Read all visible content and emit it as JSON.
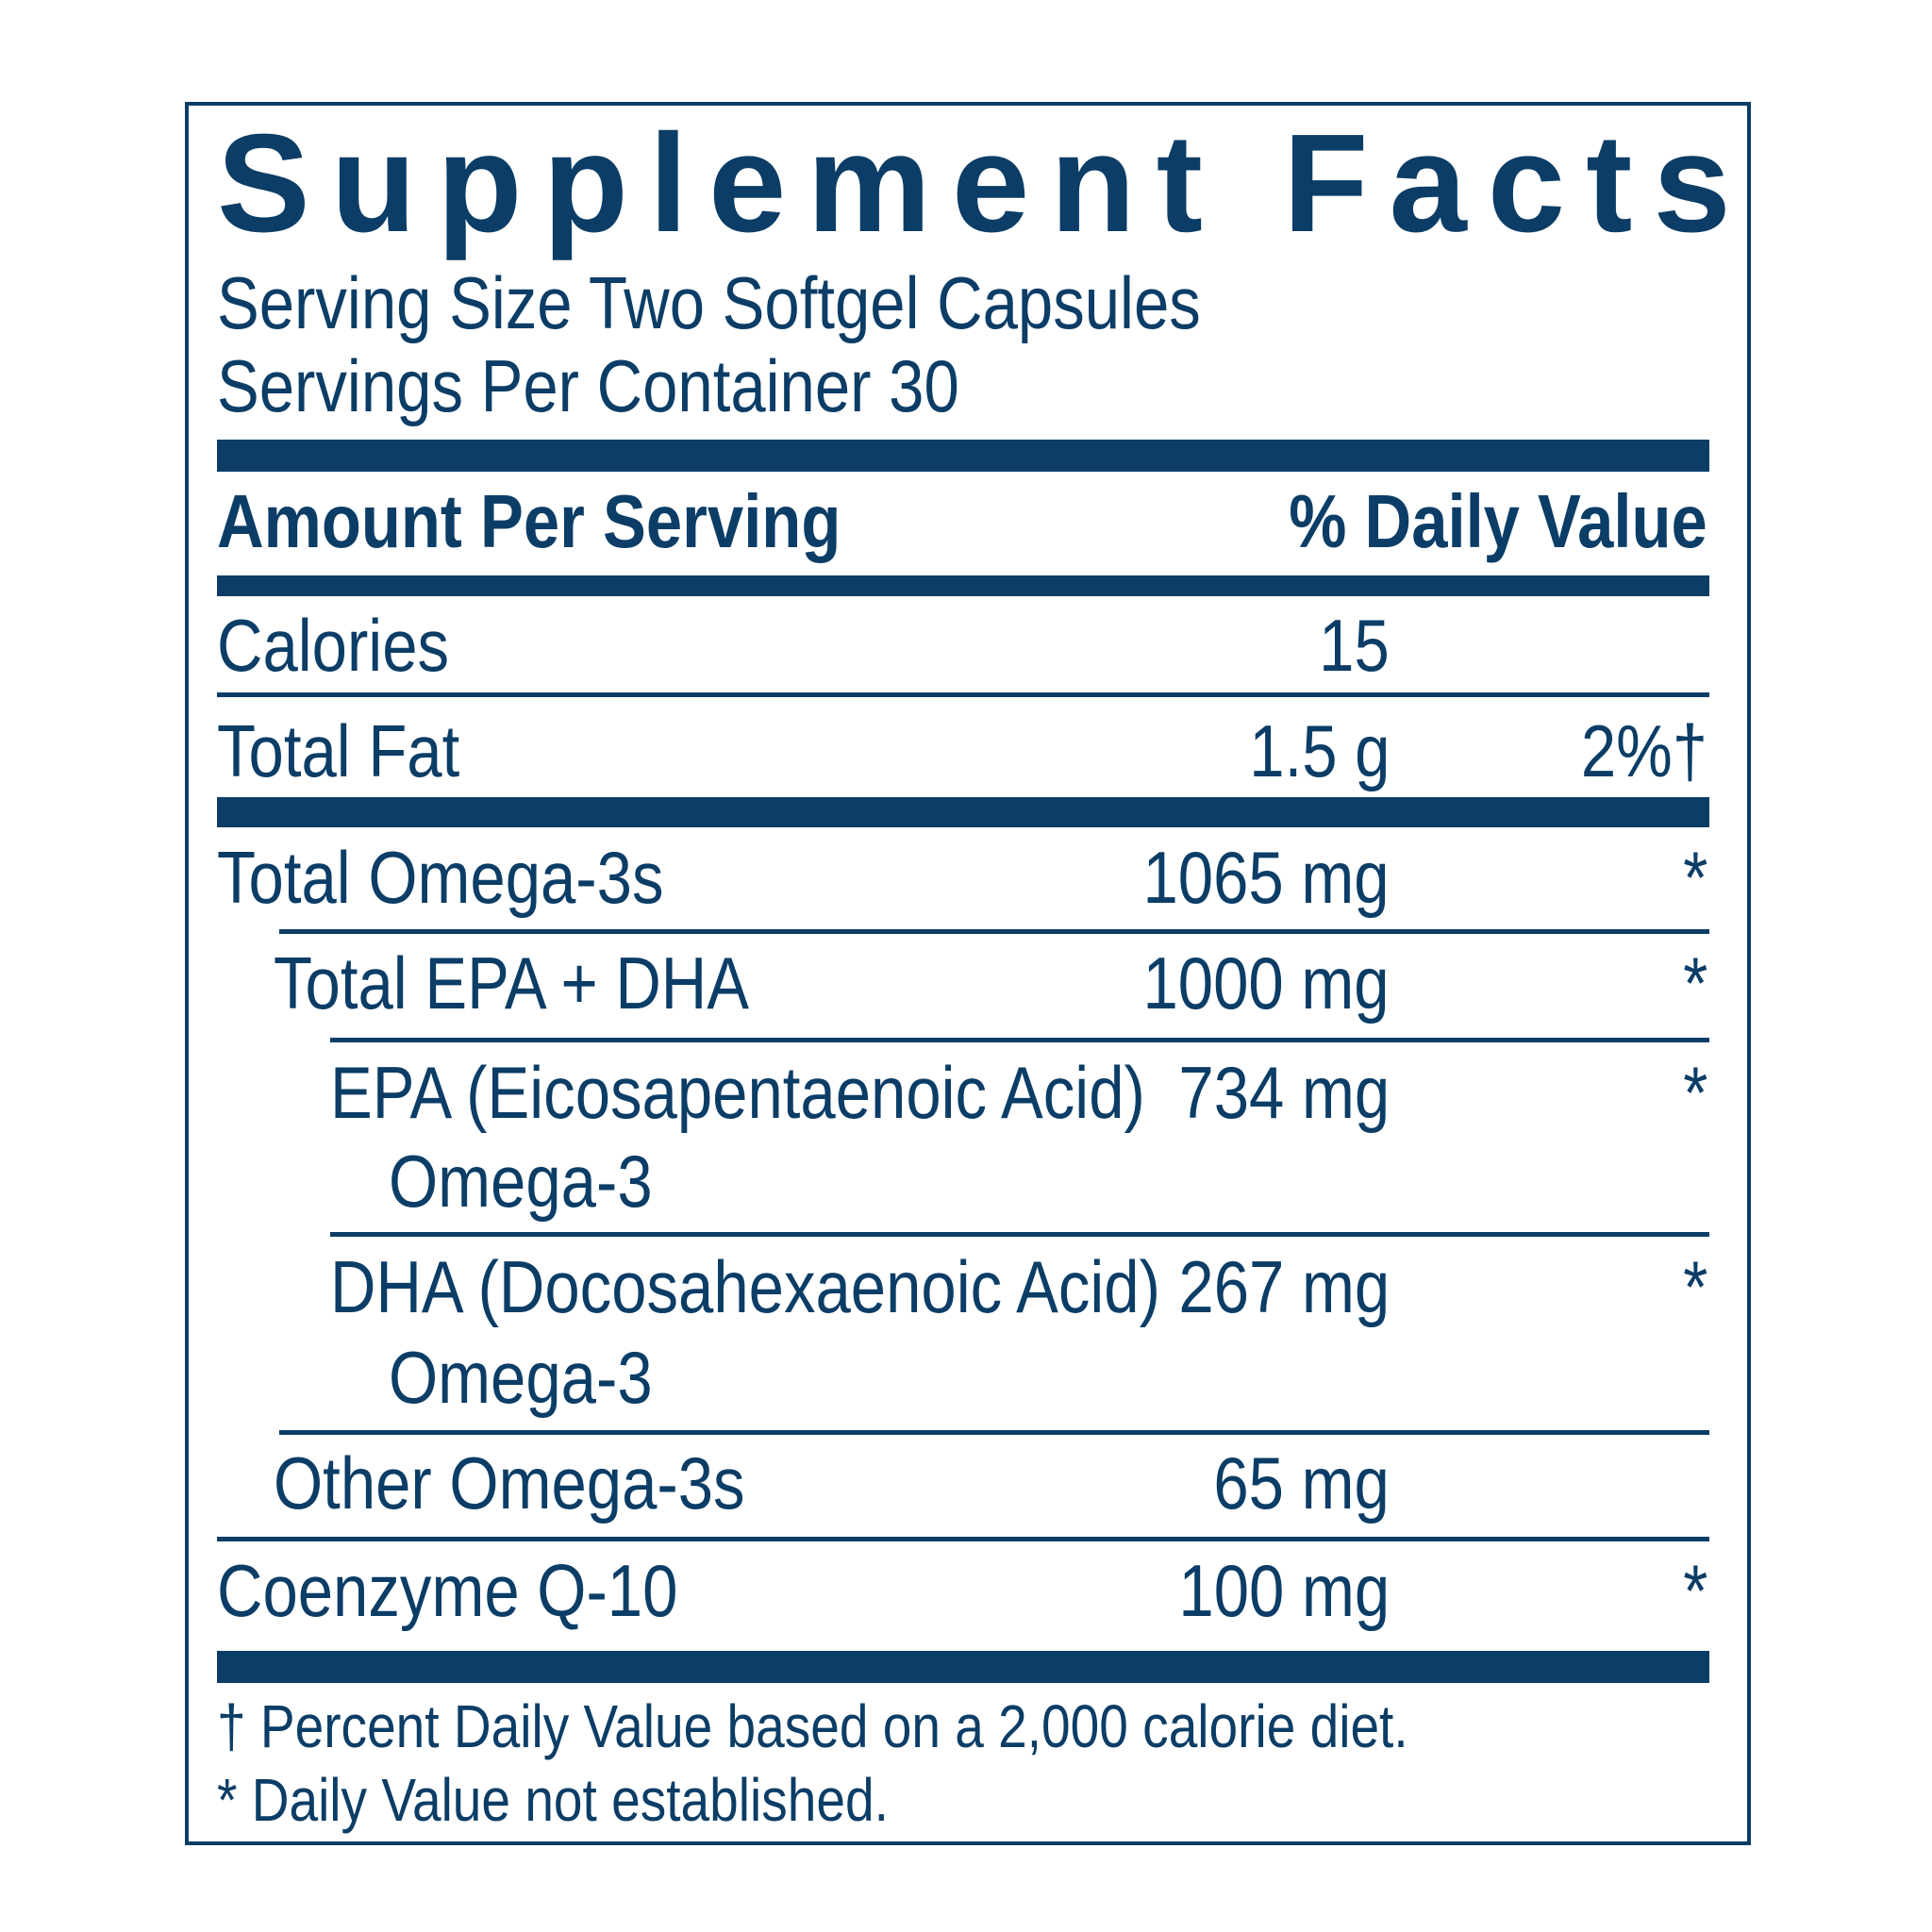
{
  "label": {
    "title": "Supplement Facts",
    "serving_size": "Serving Size Two Softgel Capsules",
    "servings_per_container": "Servings Per Container 30",
    "header_amount": "Amount Per Serving",
    "header_dv": "% Daily Value"
  },
  "rows": [
    {
      "name": "Calories",
      "amount": "15",
      "dv": ""
    },
    {
      "name": "Total Fat",
      "amount": "1.5 g",
      "dv": "2%†"
    },
    {
      "name": "Total Omega-3s",
      "amount": "1065 mg",
      "dv": "*"
    },
    {
      "name": "Total EPA + DHA",
      "amount": "1000 mg",
      "dv": "*"
    },
    {
      "name": "EPA (Eicosapentaenoic Acid)",
      "name2": "Omega-3",
      "amount": "734 mg",
      "dv": "*"
    },
    {
      "name": "DHA (Docosahexaenoic Acid)",
      "name2": "Omega-3",
      "amount": "267 mg",
      "dv": "*"
    },
    {
      "name": "Other Omega-3s",
      "amount": "65 mg",
      "dv": ""
    },
    {
      "name": "Coenzyme Q-10",
      "amount": "100 mg",
      "dv": "*"
    }
  ],
  "footnotes": {
    "dagger": "† Percent Daily Value based on a 2,000 calorie diet.",
    "asterisk": "*  Daily Value not established."
  },
  "colors": {
    "ink": "#0b3d66",
    "background": "#ffffff"
  }
}
